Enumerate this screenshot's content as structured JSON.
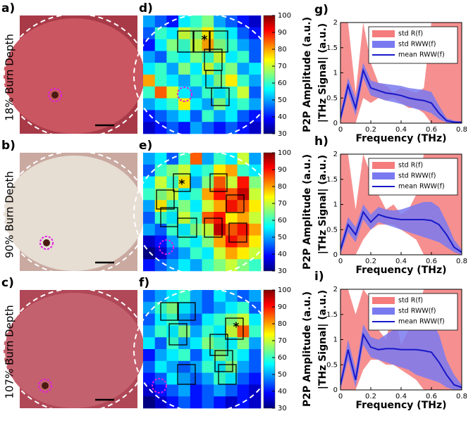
{
  "photos": [
    {
      "label": "a)",
      "row_label": "18% Burn Depth"
    },
    {
      "label": "b)",
      "row_label": "90% Burn Depth"
    },
    {
      "label": "c)",
      "row_label": "107% Burn Depth"
    }
  ],
  "heatmaps": [
    {
      "label": "d)",
      "marker": "*",
      "values": [
        [
          50,
          45,
          40,
          55,
          60,
          65,
          50,
          45,
          40,
          35
        ],
        [
          45,
          60,
          55,
          70,
          65,
          75,
          60,
          55,
          45,
          40
        ],
        [
          40,
          55,
          65,
          60,
          70,
          80,
          65,
          60,
          50,
          45
        ],
        [
          50,
          45,
          60,
          55,
          65,
          60,
          70,
          55,
          60,
          45
        ],
        [
          55,
          60,
          50,
          65,
          55,
          70,
          60,
          65,
          50,
          55
        ],
        [
          80,
          60,
          55,
          50,
          60,
          55,
          65,
          75,
          60,
          50
        ],
        [
          60,
          85,
          70,
          55,
          50,
          60,
          55,
          60,
          70,
          45
        ],
        [
          50,
          55,
          60,
          75,
          55,
          50,
          65,
          55,
          60,
          50
        ],
        [
          40,
          45,
          50,
          55,
          45,
          60,
          50,
          55,
          45,
          40
        ],
        [
          35,
          40,
          45,
          40,
          50,
          45,
          40,
          45,
          40,
          35
        ]
      ]
    },
    {
      "label": "e)",
      "marker": "*",
      "values": [
        [
          50,
          55,
          45,
          60,
          85,
          50,
          60,
          55,
          70,
          50
        ],
        [
          45,
          60,
          65,
          70,
          55,
          60,
          75,
          80,
          60,
          55
        ],
        [
          55,
          70,
          60,
          75,
          50,
          65,
          85,
          70,
          90,
          65
        ],
        [
          60,
          65,
          70,
          55,
          60,
          80,
          90,
          85,
          95,
          70
        ],
        [
          50,
          75,
          60,
          65,
          55,
          70,
          80,
          90,
          85,
          75
        ],
        [
          45,
          60,
          55,
          70,
          60,
          85,
          90,
          75,
          80,
          70
        ],
        [
          50,
          45,
          60,
          55,
          65,
          70,
          95,
          85,
          90,
          80
        ],
        [
          35,
          40,
          50,
          60,
          55,
          65,
          80,
          90,
          85,
          75
        ],
        [
          30,
          35,
          45,
          50,
          60,
          55,
          70,
          80,
          75,
          70
        ],
        [
          40,
          45,
          50,
          55,
          50,
          60,
          65,
          70,
          65,
          60
        ]
      ]
    },
    {
      "label": "f)",
      "marker": "*",
      "values": [
        [
          45,
          50,
          55,
          60,
          50,
          45,
          55,
          50,
          45,
          50
        ],
        [
          50,
          60,
          65,
          55,
          50,
          45,
          50,
          55,
          60,
          45
        ],
        [
          45,
          55,
          60,
          50,
          45,
          55,
          60,
          65,
          70,
          55
        ],
        [
          50,
          60,
          55,
          65,
          50,
          60,
          55,
          70,
          85,
          60
        ],
        [
          55,
          45,
          60,
          50,
          55,
          65,
          60,
          55,
          65,
          50
        ],
        [
          40,
          50,
          55,
          60,
          45,
          55,
          65,
          60,
          55,
          45
        ],
        [
          45,
          55,
          50,
          45,
          50,
          60,
          55,
          65,
          50,
          45
        ],
        [
          40,
          45,
          55,
          50,
          45,
          50,
          60,
          55,
          45,
          40
        ],
        [
          35,
          40,
          45,
          50,
          40,
          45,
          50,
          45,
          40,
          35
        ],
        [
          30,
          35,
          40,
          45,
          40,
          45,
          40,
          35,
          40,
          35
        ]
      ]
    }
  ],
  "colorbar": {
    "label": "P2P Amplitude (a.u.)",
    "lim": [
      30,
      100
    ],
    "ticks": [
      30,
      40,
      50,
      60,
      70,
      80,
      90,
      100
    ],
    "colormap": "jet"
  },
  "chart_data": [
    {
      "type": "line",
      "label": "g)",
      "xlabel": "Frequency (THz)",
      "ylabel": "|THz Signal| (a.u.)",
      "xlim": [
        0,
        0.8
      ],
      "ylim": [
        0,
        2
      ],
      "xticks": [
        0,
        0.2,
        0.4,
        0.6,
        0.8
      ],
      "yticks": [
        0,
        0.5,
        1,
        1.5,
        2
      ],
      "legend": "upper right",
      "x": [
        0,
        0.05,
        0.1,
        0.15,
        0.2,
        0.25,
        0.3,
        0.35,
        0.4,
        0.45,
        0.5,
        0.55,
        0.6,
        0.65,
        0.7,
        0.75,
        0.8
      ],
      "series": [
        {
          "name": "std R(f)",
          "kind": "band",
          "color": "#f47c7c",
          "upper": [
            2,
            2,
            0.6,
            2,
            1.2,
            0.8,
            0.75,
            0.6,
            0.7,
            0.65,
            0.6,
            0.7,
            2,
            2,
            2,
            2,
            2
          ],
          "lower": [
            0,
            0,
            0,
            0.5,
            0.4,
            0.5,
            0.45,
            0.5,
            0.4,
            0.3,
            0.3,
            0.2,
            0,
            0,
            0,
            0,
            0
          ]
        },
        {
          "name": "std RWW(f)",
          "kind": "band",
          "color": "#7a7af0",
          "upper": [
            0.2,
            0.9,
            0.5,
            1.2,
            0.85,
            0.8,
            0.78,
            0.76,
            0.74,
            0.7,
            0.68,
            0.66,
            0.62,
            0.35,
            0.1,
            0.05,
            0.03
          ],
          "lower": [
            0,
            0.6,
            0.15,
            0.9,
            0.55,
            0.5,
            0.45,
            0.42,
            0.38,
            0.33,
            0.28,
            0.25,
            0.2,
            0.08,
            0.01,
            0,
            0
          ]
        },
        {
          "name": "mean RWW(f)",
          "kind": "line",
          "color": "#1818c8",
          "values": [
            0.1,
            0.75,
            0.3,
            1.05,
            0.7,
            0.65,
            0.6,
            0.58,
            0.55,
            0.5,
            0.47,
            0.45,
            0.4,
            0.2,
            0.05,
            0.02,
            0.02
          ]
        }
      ]
    },
    {
      "type": "line",
      "label": "h)",
      "xlabel": "Frequency (THz)",
      "ylabel": "|THz Signal| (a.u.)",
      "xlim": [
        0,
        0.8
      ],
      "ylim": [
        0,
        2
      ],
      "xticks": [
        0,
        0.2,
        0.4,
        0.6,
        0.8
      ],
      "yticks": [
        0,
        0.5,
        1,
        1.5,
        2
      ],
      "legend": "upper right",
      "x": [
        0,
        0.05,
        0.1,
        0.15,
        0.2,
        0.25,
        0.3,
        0.35,
        0.4,
        0.45,
        0.5,
        0.55,
        0.6,
        0.65,
        0.7,
        0.75,
        0.8
      ],
      "series": [
        {
          "name": "std R(f)",
          "kind": "band",
          "color": "#f47c7c",
          "upper": [
            2,
            2,
            0.9,
            2,
            1.6,
            1.2,
            0.9,
            1.0,
            0.8,
            0.9,
            1.2,
            2,
            2,
            2,
            2,
            2,
            2
          ],
          "lower": [
            0,
            0,
            0,
            0.3,
            0.5,
            0.6,
            0.6,
            0.6,
            0.5,
            0.4,
            0.3,
            0,
            0,
            0,
            0,
            0,
            0
          ]
        },
        {
          "name": "std RWW(f)",
          "kind": "band",
          "color": "#7a7af0",
          "upper": [
            0.2,
            0.75,
            0.55,
            1.0,
            0.8,
            0.95,
            0.9,
            0.88,
            0.9,
            0.95,
            1.0,
            1.05,
            1.05,
            0.95,
            0.65,
            0.3,
            0.1
          ],
          "lower": [
            0,
            0.45,
            0.25,
            0.7,
            0.5,
            0.65,
            0.6,
            0.55,
            0.5,
            0.45,
            0.4,
            0.35,
            0.3,
            0.25,
            0.15,
            0.05,
            0
          ]
        },
        {
          "name": "mean RWW(f)",
          "kind": "line",
          "color": "#1818c8",
          "values": [
            0.1,
            0.6,
            0.4,
            0.85,
            0.65,
            0.8,
            0.75,
            0.72,
            0.7,
            0.7,
            0.7,
            0.7,
            0.68,
            0.6,
            0.4,
            0.15,
            0.05
          ]
        }
      ]
    },
    {
      "type": "line",
      "label": "i)",
      "xlabel": "Frequency (THz)",
      "ylabel": "|THz Signal| (a.u.)",
      "xlim": [
        0,
        0.8
      ],
      "ylim": [
        0,
        2
      ],
      "xticks": [
        0,
        0.2,
        0.4,
        0.6,
        0.8
      ],
      "yticks": [
        0,
        0.5,
        1,
        1.5,
        2
      ],
      "legend": "upper right",
      "x": [
        0,
        0.05,
        0.1,
        0.15,
        0.2,
        0.25,
        0.3,
        0.35,
        0.4,
        0.45,
        0.5,
        0.55,
        0.6,
        0.65,
        0.7,
        0.75,
        0.8
      ],
      "series": [
        {
          "name": "std R(f)",
          "kind": "band",
          "color": "#f47c7c",
          "upper": [
            2,
            2,
            1.5,
            2,
            1.8,
            1.2,
            1.0,
            1.6,
            0.9,
            1.2,
            1.5,
            2,
            2,
            2,
            2,
            2,
            2
          ],
          "lower": [
            0,
            0,
            0,
            0.4,
            0.6,
            0.6,
            0.5,
            0.5,
            0.4,
            0.3,
            0.2,
            0,
            0,
            0,
            0,
            0,
            0
          ]
        },
        {
          "name": "std RWW(f)",
          "kind": "band",
          "color": "#7a7af0",
          "upper": [
            0.2,
            1.0,
            0.4,
            1.3,
            1.05,
            1.0,
            1.1,
            1.2,
            1.25,
            1.35,
            1.4,
            1.45,
            1.4,
            1.1,
            0.6,
            0.3,
            0.1
          ],
          "lower": [
            0,
            0.6,
            0.05,
            0.9,
            0.65,
            0.6,
            0.55,
            0.5,
            0.45,
            0.4,
            0.3,
            0.25,
            0.2,
            0.15,
            0.05,
            0,
            0
          ]
        },
        {
          "name": "mean RWW(f)",
          "kind": "line",
          "color": "#1818c8",
          "values": [
            0.1,
            0.8,
            0.2,
            1.1,
            0.85,
            0.8,
            0.82,
            0.82,
            0.8,
            0.8,
            0.8,
            0.78,
            0.75,
            0.55,
            0.3,
            0.1,
            0.05
          ]
        }
      ]
    }
  ]
}
